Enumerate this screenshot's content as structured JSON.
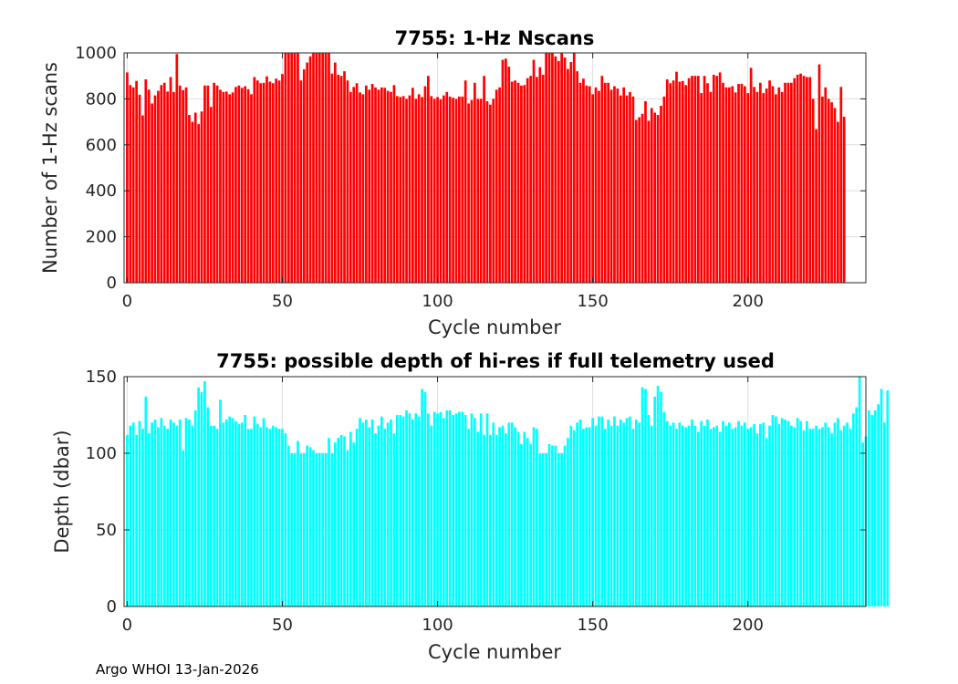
{
  "footer": "Argo WHOI 13-Jan-2026",
  "chart_data": [
    {
      "type": "bar",
      "title": "7755: 1-Hz Nscans",
      "xlabel": "Cycle number",
      "ylabel": "Number of 1-Hz scans",
      "xlim": [
        -1,
        238
      ],
      "ylim": [
        0,
        1000
      ],
      "xticks": [
        0,
        50,
        100,
        150,
        200
      ],
      "yticks": [
        0,
        200,
        400,
        600,
        800,
        1000
      ],
      "grid": true,
      "color": "#ff0000",
      "x_start": 0,
      "values": [
        915,
        860,
        850,
        878,
        818,
        728,
        885,
        840,
        780,
        815,
        835,
        860,
        870,
        832,
        895,
        830,
        995,
        858,
        838,
        850,
        730,
        700,
        740,
        690,
        745,
        858,
        858,
        765,
        870,
        858,
        840,
        830,
        832,
        820,
        828,
        852,
        858,
        848,
        855,
        842,
        820,
        895,
        880,
        868,
        870,
        898,
        875,
        868,
        888,
        880,
        908,
        1000,
        1000,
        1000,
        1000,
        1000,
        880,
        928,
        958,
        985,
        1000,
        1000,
        1000,
        1000,
        1000,
        1000,
        910,
        958,
        905,
        900,
        920,
        880,
        830,
        852,
        868,
        828,
        820,
        858,
        840,
        865,
        850,
        840,
        850,
        848,
        835,
        830,
        860,
        812,
        808,
        812,
        800,
        815,
        848,
        800,
        820,
        808,
        855,
        900,
        812,
        800,
        808,
        798,
        815,
        830,
        810,
        805,
        800,
        810,
        810,
        880,
        780,
        795,
        870,
        800,
        800,
        900,
        790,
        775,
        800,
        840,
        850,
        970,
        975,
        940,
        875,
        880,
        870,
        858,
        860,
        890,
        900,
        970,
        895,
        938,
        905,
        1000,
        1000,
        1000,
        985,
        965,
        1000,
        980,
        930,
        960,
        1000,
        920,
        870,
        888,
        858,
        855,
        820,
        850,
        835,
        900,
        870,
        870,
        840,
        855,
        845,
        815,
        850,
        815,
        830,
        810,
        708,
        720,
        735,
        790,
        705,
        760,
        740,
        730,
        770,
        810,
        885,
        868,
        880,
        918,
        875,
        878,
        860,
        890,
        900,
        900,
        900,
        825,
        900,
        868,
        830,
        905,
        900,
        915,
        870,
        850,
        850,
        855,
        828,
        865,
        866,
        855,
        825,
        935,
        852,
        830,
        870,
        825,
        845,
        880,
        855,
        820,
        850,
        830,
        870,
        870,
        870,
        890,
        905,
        910,
        900,
        895,
        895,
        800,
        668,
        950,
        810,
        850,
        800,
        785,
        760,
        700,
        852,
        722
      ]
    },
    {
      "type": "bar",
      "title": "7755: possible depth of hi-res if full telemetry used",
      "xlabel": "Cycle number",
      "ylabel": "Depth (dbar)",
      "xlim": [
        -1,
        238
      ],
      "ylim": [
        0,
        150
      ],
      "xticks": [
        0,
        50,
        100,
        150,
        200
      ],
      "yticks": [
        0,
        50,
        100,
        150
      ],
      "grid": true,
      "color": "#00ffff",
      "x_start": 0,
      "values": [
        112,
        118,
        120,
        112,
        121,
        116,
        137,
        113,
        120,
        122,
        117,
        123,
        118,
        116,
        122,
        120,
        118,
        122,
        102,
        123,
        122,
        118,
        128,
        143,
        140,
        147,
        130,
        118,
        118,
        116,
        135,
        120,
        122,
        124,
        123,
        121,
        119,
        120,
        125,
        116,
        116,
        124,
        119,
        117,
        123,
        117,
        116,
        118,
        117,
        116,
        116,
        113,
        105,
        100,
        100,
        108,
        100,
        100,
        105,
        104,
        102,
        100,
        100,
        100,
        100,
        110,
        100,
        107,
        110,
        112,
        111,
        102,
        114,
        107,
        116,
        123,
        120,
        122,
        117,
        122,
        113,
        118,
        124,
        116,
        120,
        122,
        113,
        125,
        125,
        124,
        128,
        126,
        122,
        126,
        124,
        142,
        140,
        126,
        118,
        127,
        126,
        127,
        123,
        128,
        128,
        125,
        126,
        127,
        127,
        125,
        116,
        126,
        123,
        114,
        126,
        112,
        126,
        112,
        120,
        112,
        117,
        118,
        113,
        120,
        120,
        117,
        114,
        106,
        114,
        110,
        106,
        117,
        116,
        100,
        100,
        100,
        106,
        105,
        105,
        100,
        100,
        105,
        110,
        118,
        115,
        120,
        122,
        116,
        117,
        117,
        123,
        118,
        124,
        124,
        116,
        122,
        118,
        124,
        118,
        122,
        120,
        123,
        124,
        116,
        122,
        120,
        143,
        142,
        125,
        118,
        137,
        144,
        140,
        127,
        121,
        118,
        120,
        116,
        120,
        118,
        117,
        118,
        122,
        118,
        114,
        121,
        118,
        122,
        116,
        117,
        118,
        114,
        121,
        118,
        120,
        116,
        117,
        121,
        118,
        120,
        116,
        117,
        119,
        113,
        119,
        120,
        110,
        118,
        125,
        124,
        119,
        123,
        122,
        121,
        118,
        117,
        123,
        121,
        115,
        121,
        116,
        116,
        118,
        116,
        117,
        120,
        117,
        113,
        120,
        123,
        115,
        118,
        120,
        116,
        126,
        130,
        153,
        107,
        111,
        128,
        125,
        128,
        132,
        142,
        120,
        141
      ]
    }
  ]
}
